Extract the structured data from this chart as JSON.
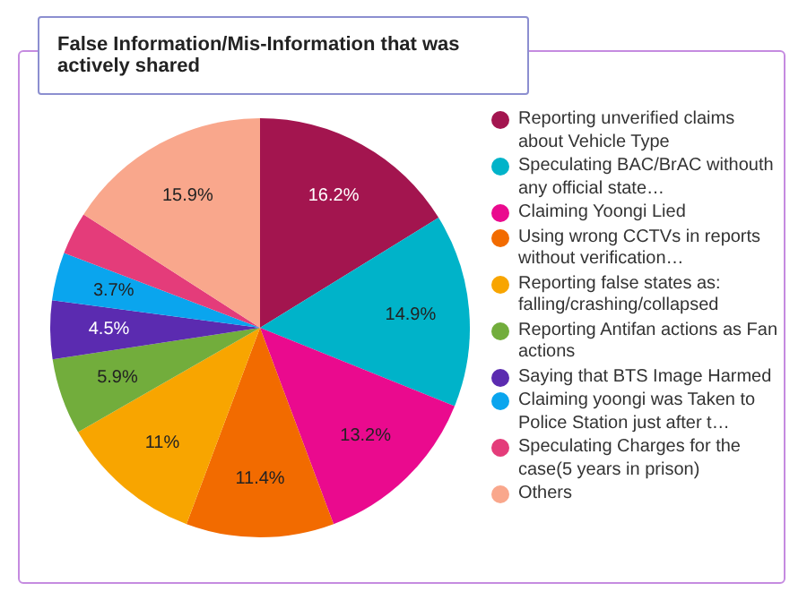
{
  "chart_data": {
    "type": "pie",
    "title": "False Information/Mis-Information that was actively shared",
    "categories": [
      "Reporting unverified claims about Vehicle Type",
      "Speculating BAC/BrAC withouth any official state…",
      "Claiming Yoongi Lied",
      "Using wrong CCTVs in reports without verification…",
      "Reporting false states as: falling/crashing/collapsed",
      "Reporting Antifan actions as Fan actions",
      "Saying that BTS Image Harmed",
      "Claiming yoongi was Taken to Police Station just after t…",
      "Speculating Charges for the case(5 years in prison)",
      "Others"
    ],
    "values": [
      16.2,
      14.9,
      13.2,
      11.4,
      11,
      5.9,
      4.5,
      3.7,
      3.3,
      15.9
    ],
    "value_labels": [
      "16.2%",
      "14.9%",
      "13.2%",
      "11.4%",
      "11%",
      "5.9%",
      "4.5%",
      "3.7%",
      null,
      "15.9%"
    ],
    "colors": [
      "#a3154f",
      "#00b3c9",
      "#ea0a8e",
      "#f26b00",
      "#f8a500",
      "#72ad3c",
      "#5b2bb0",
      "#0aa5ee",
      "#e43c7a",
      "#f9a78c"
    ],
    "legend": "right"
  }
}
